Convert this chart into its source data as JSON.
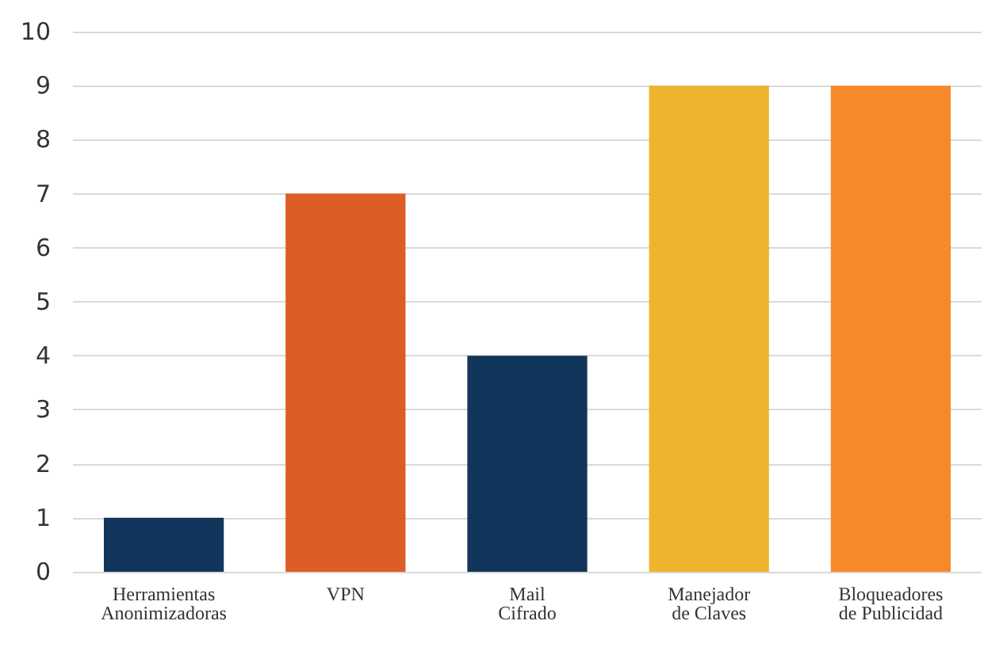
{
  "chart_data": {
    "type": "bar",
    "categories": [
      "Herramientas\nAnonimizadoras",
      "VPN",
      "Mail\nCifrado",
      "Manejador\nde Claves",
      "Bloqueadores\nde Publicidad"
    ],
    "values": [
      1,
      7,
      4,
      9,
      9
    ],
    "colors": [
      "#12355b",
      "#dd5d26",
      "#12355b",
      "#efb42e",
      "#f68a2a"
    ],
    "ylim": [
      0,
      10
    ],
    "yticks": [
      0,
      1,
      2,
      3,
      4,
      5,
      6,
      7,
      8,
      9,
      10
    ],
    "grid": "y"
  }
}
